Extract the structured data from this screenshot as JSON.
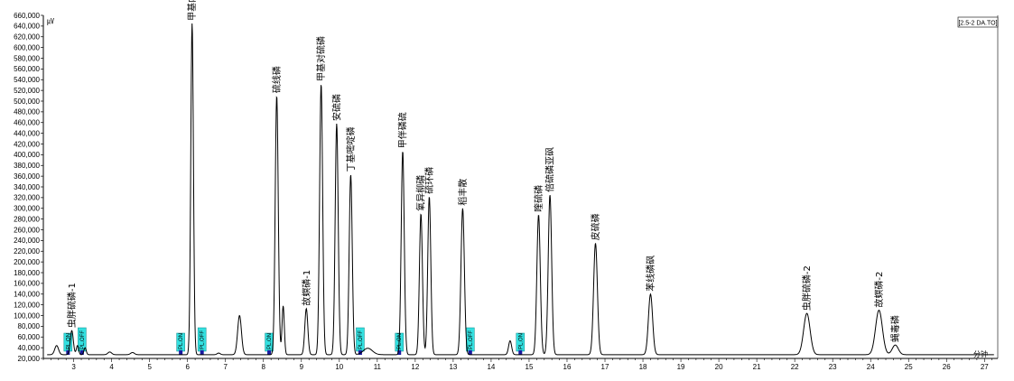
{
  "chart_data": {
    "type": "line",
    "title": "",
    "xlabel": "",
    "ylabel": "",
    "y_unit_glyph": "㎶",
    "trace_tag": "[2.5-2 DA.TO]",
    "x_unit_label": "分钟",
    "xlim": [
      2.2,
      27.35
    ],
    "ylim": [
      20000,
      660000
    ],
    "xticks": [
      3,
      4,
      5,
      6,
      7,
      8,
      9,
      10,
      11,
      12,
      13,
      14,
      15,
      16,
      17,
      18,
      19,
      20,
      21,
      22,
      23,
      24,
      25,
      26,
      27
    ],
    "yticks": [
      20000,
      40000,
      60000,
      80000,
      100000,
      120000,
      140000,
      160000,
      180000,
      200000,
      220000,
      240000,
      260000,
      280000,
      300000,
      320000,
      340000,
      360000,
      380000,
      400000,
      420000,
      440000,
      460000,
      480000,
      500000,
      520000,
      540000,
      560000,
      580000,
      600000,
      620000,
      640000,
      660000
    ],
    "ytick_labels": [
      "20,000",
      "40,000",
      "60,000",
      "80,000",
      "100,000",
      "120,000",
      "140,000",
      "160,000",
      "180,000",
      "200,000",
      "220,000",
      "240,000",
      "260,000",
      "280,000",
      "300,000",
      "320,000",
      "340,000",
      "360,000",
      "380,000",
      "400,000",
      "420,000",
      "440,000",
      "460,000",
      "480,000",
      "500,000",
      "520,000",
      "540,000",
      "560,000",
      "580,000",
      "600,000",
      "620,000",
      "640,000",
      "660,000"
    ],
    "baseline": 27000,
    "line_color": "#000000",
    "series": [
      {
        "name": "",
        "peaks": [
          {
            "rt": 2.55,
            "height": 44000,
            "width": 0.05
          },
          {
            "rt": 2.95,
            "height": 72000,
            "width": 0.04
          },
          {
            "rt": 3.1,
            "height": 44000,
            "width": 0.03
          },
          {
            "rt": 3.3,
            "height": 40000,
            "width": 0.03
          },
          {
            "rt": 3.95,
            "height": 32000,
            "width": 0.05
          },
          {
            "rt": 4.55,
            "height": 31000,
            "width": 0.05
          },
          {
            "rt": 6.12,
            "height": 645000,
            "width": 0.035
          },
          {
            "rt": 6.82,
            "height": 30000,
            "width": 0.04
          },
          {
            "rt": 7.37,
            "height": 100000,
            "width": 0.05
          },
          {
            "rt": 8.35,
            "height": 510000,
            "width": 0.04
          },
          {
            "rt": 8.52,
            "height": 118000,
            "width": 0.03
          },
          {
            "rt": 9.13,
            "height": 113000,
            "width": 0.04
          },
          {
            "rt": 9.52,
            "height": 532000,
            "width": 0.04
          },
          {
            "rt": 9.93,
            "height": 458000,
            "width": 0.04
          },
          {
            "rt": 10.3,
            "height": 363000,
            "width": 0.04
          },
          {
            "rt": 10.75,
            "height": 39000,
            "width": 0.12
          },
          {
            "rt": 11.67,
            "height": 407000,
            "width": 0.04
          },
          {
            "rt": 12.15,
            "height": 290000,
            "width": 0.04
          },
          {
            "rt": 12.37,
            "height": 322000,
            "width": 0.04
          },
          {
            "rt": 13.25,
            "height": 300000,
            "width": 0.045
          },
          {
            "rt": 14.5,
            "height": 53000,
            "width": 0.04
          },
          {
            "rt": 15.25,
            "height": 288000,
            "width": 0.045
          },
          {
            "rt": 15.55,
            "height": 325000,
            "width": 0.045
          },
          {
            "rt": 16.75,
            "height": 235000,
            "width": 0.05
          },
          {
            "rt": 18.2,
            "height": 140000,
            "width": 0.055
          },
          {
            "rt": 22.32,
            "height": 104000,
            "width": 0.085
          },
          {
            "rt": 24.22,
            "height": 110000,
            "width": 0.09
          },
          {
            "rt": 24.65,
            "height": 45000,
            "width": 0.08
          }
        ]
      }
    ],
    "peak_labels": [
      {
        "rt": 2.95,
        "apex": 72000,
        "label": "虫胖硫磷-1"
      },
      {
        "rt": 6.12,
        "apex": 645000,
        "label": "甲基内吸磷"
      },
      {
        "rt": 8.35,
        "apex": 510000,
        "label": "硫线磷"
      },
      {
        "rt": 9.13,
        "apex": 113000,
        "label": "故螟磷-1"
      },
      {
        "rt": 9.52,
        "apex": 532000,
        "label": "甲基对硫磷"
      },
      {
        "rt": 9.93,
        "apex": 458000,
        "label": "安硫磷"
      },
      {
        "rt": 10.3,
        "apex": 363000,
        "label": "丁基嘧啶磷"
      },
      {
        "rt": 11.67,
        "apex": 407000,
        "label": "甲伴磷硫"
      },
      {
        "rt": 12.15,
        "apex": 290000,
        "label": "氧异柳磷"
      },
      {
        "rt": 12.37,
        "apex": 322000,
        "label": "硫环磷"
      },
      {
        "rt": 13.25,
        "apex": 300000,
        "label": "稻丰散"
      },
      {
        "rt": 15.25,
        "apex": 288000,
        "label": "喹硫磷"
      },
      {
        "rt": 15.55,
        "apex": 325000,
        "label": "倍硫磷亚砜"
      },
      {
        "rt": 16.75,
        "apex": 235000,
        "label": "皮硫磷"
      },
      {
        "rt": 18.2,
        "apex": 140000,
        "label": "苯线磷砜"
      },
      {
        "rt": 22.32,
        "apex": 104000,
        "label": "虫胖硫磷-2"
      },
      {
        "rt": 24.22,
        "apex": 110000,
        "label": "故螟磷-2"
      },
      {
        "rt": 24.65,
        "apex": 45000,
        "label": "蝇毒磷"
      }
    ],
    "events": [
      {
        "rt": 2.85,
        "label": "PL.ON"
      },
      {
        "rt": 3.22,
        "label": "PL.OFF"
      },
      {
        "rt": 5.82,
        "label": "PL.ON"
      },
      {
        "rt": 6.38,
        "label": "PL.OFF"
      },
      {
        "rt": 8.15,
        "label": "PL.ON"
      },
      {
        "rt": 10.55,
        "label": "PL.OFF"
      },
      {
        "rt": 11.58,
        "label": "PL.ON"
      },
      {
        "rt": 13.45,
        "label": "PL.OFF"
      },
      {
        "rt": 14.77,
        "label": "PL.ON"
      }
    ],
    "colors": {
      "event_box": "#33e0e0",
      "trace": "#000000",
      "marker_blue": "#1a1aa0",
      "marker_red": "#c04040"
    }
  }
}
